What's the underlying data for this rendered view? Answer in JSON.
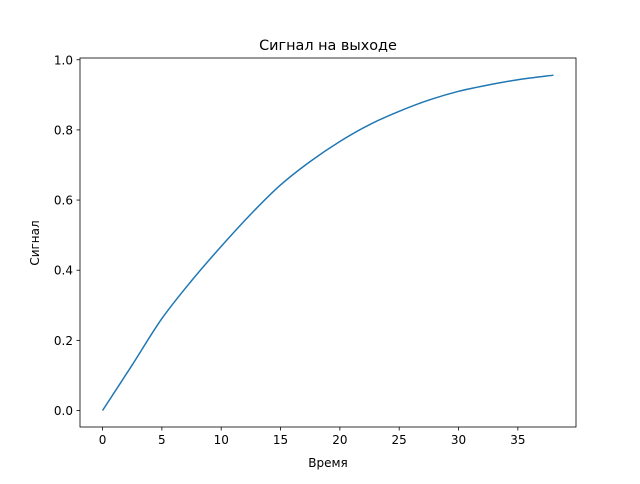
{
  "chart_data": {
    "type": "line",
    "title": "Сигнал на выходе",
    "xlabel": "Время",
    "ylabel": "Сигнал",
    "xlim": [
      -1.9,
      39.9
    ],
    "ylim": [
      -0.047,
      1.005
    ],
    "xticks": [
      0,
      5,
      10,
      15,
      20,
      25,
      30,
      35
    ],
    "xtick_labels": [
      "0",
      "5",
      "10",
      "15",
      "20",
      "25",
      "30",
      "35"
    ],
    "yticks": [
      0,
      0.2,
      0.4,
      0.6,
      0.8,
      1.0
    ],
    "ytick_labels": [
      "0.0",
      "0.2",
      "0.4",
      "0.6",
      "0.8",
      "1.0"
    ],
    "grid": false,
    "series": [
      {
        "color": "#1f77b4",
        "x": [
          0,
          2.5,
          5,
          7.5,
          10,
          12.5,
          15,
          17.5,
          20,
          22.5,
          25,
          27.5,
          30,
          32.5,
          35,
          38
        ],
        "y": [
          0,
          0.13,
          0.262,
          0.37,
          0.468,
          0.56,
          0.643,
          0.71,
          0.767,
          0.815,
          0.853,
          0.885,
          0.91,
          0.928,
          0.943,
          0.956
        ]
      }
    ]
  }
}
